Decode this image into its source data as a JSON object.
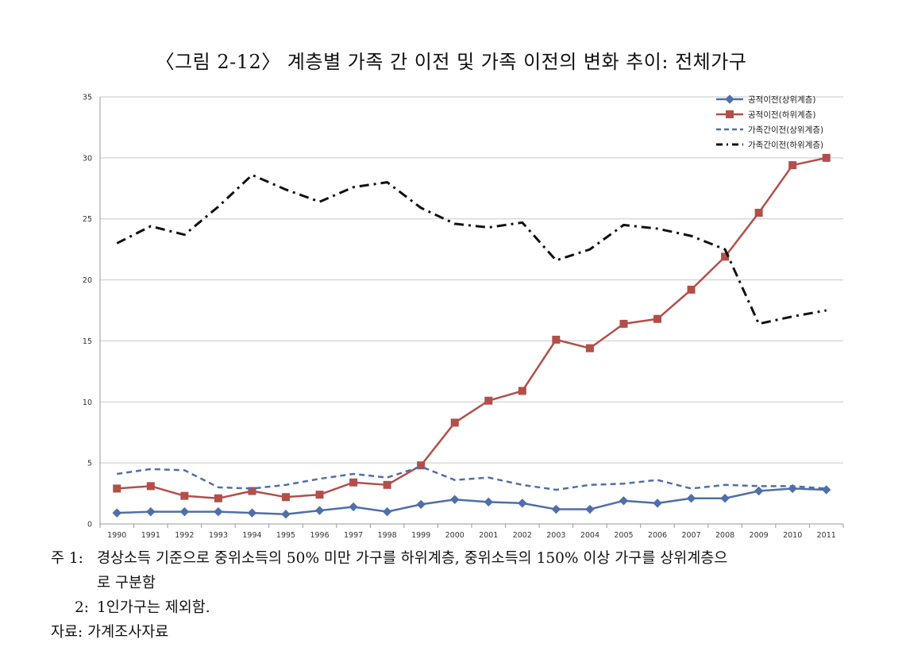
{
  "title": "〈그림 2-12〉 계층별 가족 간 이전 및 가족 이전의 변화 추이: 전체가구",
  "notes": {
    "note1_label": "주 1: ",
    "note1_line1": "경상소득 기준으로 중위소득의 50% 미만 가구를 하위계층, 중위소득의 150% 이상 가구를 상위계층으",
    "note1_line2": "로 구분함",
    "note2_label": "2: ",
    "note2_text": "1인가구는 제외함.",
    "source_label": "자료: ",
    "source_text": "가계조사자료"
  },
  "chart_data": {
    "type": "line",
    "categories": [
      "1990",
      "1991",
      "1992",
      "1993",
      "1994",
      "1995",
      "1996",
      "1997",
      "1998",
      "1999",
      "2000",
      "2001",
      "2002",
      "2003",
      "2004",
      "2005",
      "2006",
      "2007",
      "2008",
      "2009",
      "2010",
      "2011"
    ],
    "ylim": [
      0,
      35
    ],
    "yticks": [
      0,
      5,
      10,
      15,
      20,
      25,
      30,
      35
    ],
    "grid": true,
    "legend_position": "top-right",
    "series": [
      {
        "name": "공적이전(상위계층)",
        "color": "#4f6fa8",
        "style": "solid-diamond",
        "values": [
          0.9,
          1.0,
          1.0,
          1.0,
          0.9,
          0.8,
          1.1,
          1.4,
          1.0,
          1.6,
          2.0,
          1.8,
          1.7,
          1.2,
          1.2,
          1.9,
          1.7,
          2.1,
          2.1,
          2.7,
          2.9,
          2.8
        ]
      },
      {
        "name": "공적이전(하위계층)",
        "color": "#b24f4a",
        "style": "solid-square",
        "values": [
          2.9,
          3.1,
          2.3,
          2.1,
          2.7,
          2.2,
          2.4,
          3.4,
          3.2,
          4.8,
          8.3,
          10.1,
          10.9,
          15.1,
          14.4,
          16.4,
          16.8,
          19.2,
          21.9,
          25.5,
          29.4,
          30.0
        ]
      },
      {
        "name": "가족간이전(상위계층)",
        "color": "#4f6fa8",
        "style": "dashed",
        "values": [
          4.1,
          4.5,
          4.4,
          3.0,
          2.9,
          3.2,
          3.7,
          4.1,
          3.8,
          4.7,
          3.6,
          3.8,
          3.2,
          2.8,
          3.2,
          3.3,
          3.6,
          2.9,
          3.2,
          3.1,
          3.1,
          2.9
        ]
      },
      {
        "name": "가족간이전(하위계층)",
        "color": "#111111",
        "style": "dashdot",
        "values": [
          23.0,
          24.4,
          23.7,
          26.0,
          28.6,
          27.4,
          26.4,
          27.6,
          28.0,
          25.9,
          24.6,
          24.3,
          24.7,
          21.6,
          22.5,
          24.5,
          24.2,
          23.6,
          22.5,
          16.4,
          17.0,
          17.5
        ]
      }
    ]
  }
}
